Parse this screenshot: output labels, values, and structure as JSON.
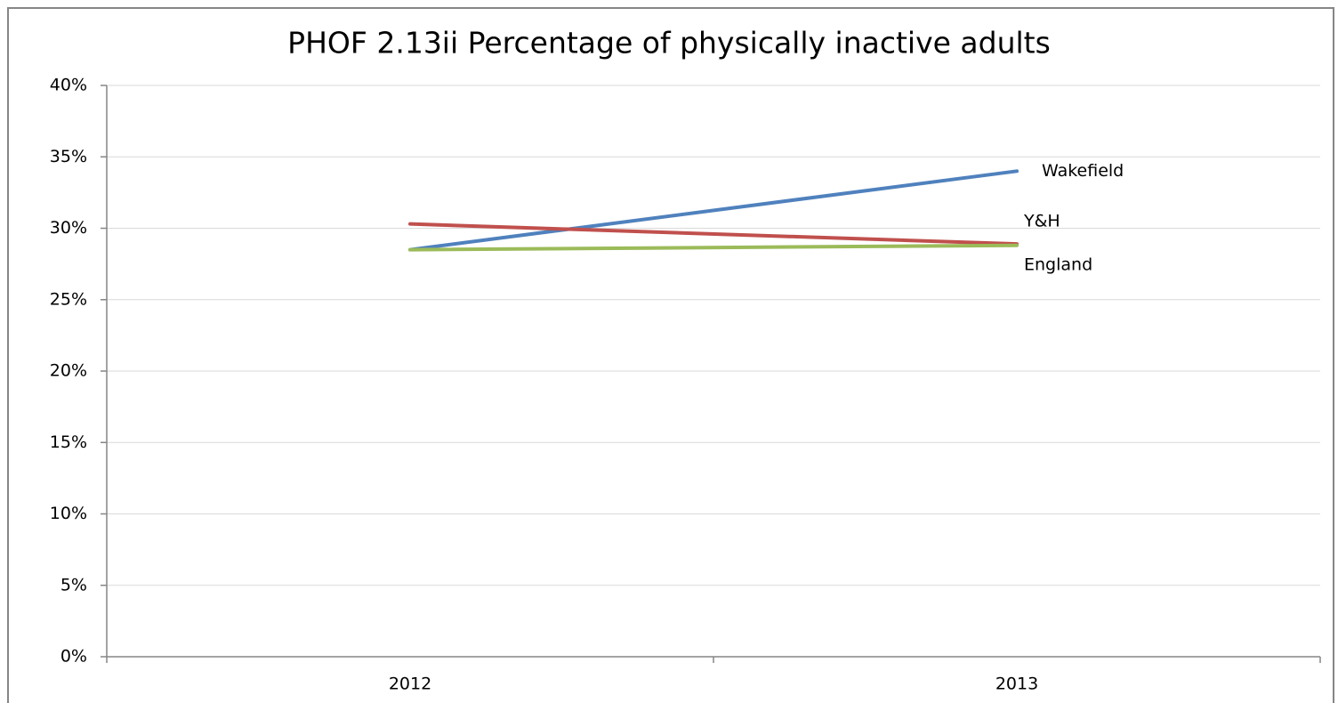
{
  "chart_data": {
    "type": "line",
    "title": "PHOF 2.13ii Percentage of physically inactive adults",
    "categories": [
      "2012",
      "2013"
    ],
    "series": [
      {
        "name": "Wakefield",
        "color": "#4f81bd",
        "values": [
          28.5,
          34.0
        ]
      },
      {
        "name": "Y&H",
        "color": "#c0504d",
        "values": [
          30.3,
          28.9
        ]
      },
      {
        "name": "England",
        "color": "#9bbb59",
        "values": [
          28.5,
          28.8
        ]
      }
    ],
    "ylim": [
      0,
      40
    ],
    "yticks": [
      {
        "value": 0,
        "label": "0%"
      },
      {
        "value": 5,
        "label": "5%"
      },
      {
        "value": 10,
        "label": "10%"
      },
      {
        "value": 15,
        "label": "15%"
      },
      {
        "value": 20,
        "label": "20%"
      },
      {
        "value": 25,
        "label": "25%"
      },
      {
        "value": 30,
        "label": "30%"
      },
      {
        "value": 35,
        "label": "35%"
      },
      {
        "value": 40,
        "label": "40%"
      }
    ],
    "grid": true
  }
}
